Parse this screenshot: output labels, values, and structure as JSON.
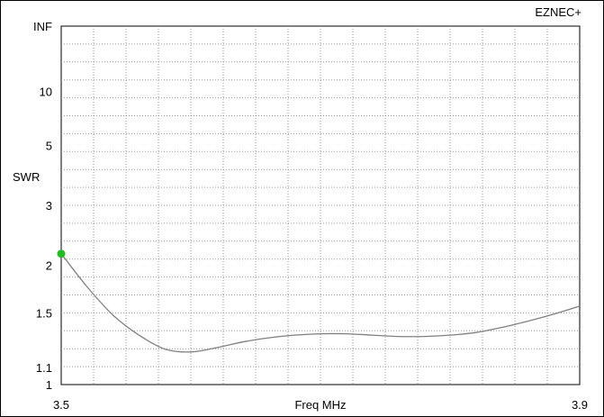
{
  "chart_data": {
    "type": "line",
    "brand": "EZNEC+",
    "xlabel": "Freq MHz",
    "ylabel": "SWR",
    "xlim": [
      3.5,
      3.9
    ],
    "x_tick_labels": [
      "3.5",
      "3.9"
    ],
    "y_scale": "reflection-coefficient (SWR chart scale)",
    "y_tick_labels": [
      "INF",
      "10",
      "5",
      "3",
      "2",
      "1.5",
      "1.1",
      "1"
    ],
    "y_ticks": [
      1,
      1.1,
      1.5,
      2,
      3,
      5,
      10,
      "INF"
    ],
    "grid": true,
    "line_color": "#808080",
    "marker_color": "#22bb22",
    "marker": {
      "x": 3.5,
      "y": 2.15
    },
    "series": [
      {
        "x": [
          3.5,
          3.52,
          3.54,
          3.56,
          3.58,
          3.6,
          3.62,
          3.64,
          3.66,
          3.68,
          3.7,
          3.72,
          3.74,
          3.76,
          3.78,
          3.8,
          3.82,
          3.84,
          3.86,
          3.88,
          3.9
        ],
        "values": [
          2.15,
          1.75,
          1.48,
          1.32,
          1.22,
          1.2,
          1.23,
          1.27,
          1.3,
          1.32,
          1.33,
          1.33,
          1.32,
          1.31,
          1.31,
          1.32,
          1.34,
          1.38,
          1.43,
          1.49,
          1.56
        ]
      }
    ]
  }
}
